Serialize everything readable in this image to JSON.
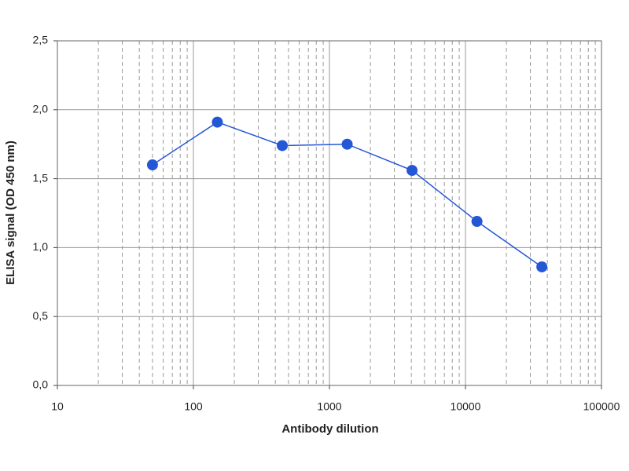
{
  "chart_data": {
    "type": "line",
    "x_label": "Antibody dilution",
    "y_label": "ELISA signal (OD 450 nm)",
    "x": [
      50,
      150,
      450,
      1350,
      4050,
      12150,
      36450
    ],
    "series": [
      {
        "name": "ELISA signal",
        "color": "#2457d6",
        "values": [
          1.6,
          1.91,
          1.74,
          1.75,
          1.56,
          1.19,
          0.86
        ]
      }
    ],
    "xlim": [
      10,
      100000
    ],
    "xticks": [
      10,
      100,
      1000,
      10000,
      100000
    ],
    "x_log": true,
    "ylim": [
      0,
      2.5
    ],
    "yticks": [
      {
        "value": 0,
        "label": "0,0"
      },
      {
        "value": 0.5,
        "label": "0,5"
      },
      {
        "value": 1,
        "label": "1,0"
      },
      {
        "value": 1.5,
        "label": "1,5"
      },
      {
        "value": 2,
        "label": "2,0"
      },
      {
        "value": 2.5,
        "label": "2,5"
      }
    ],
    "grid": true,
    "minor_grid": true
  }
}
